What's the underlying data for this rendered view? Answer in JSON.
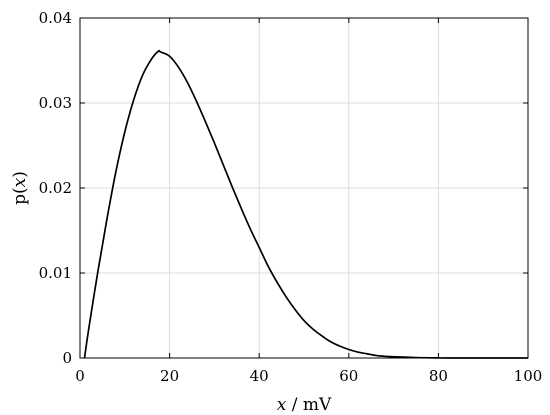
{
  "chart_data": {
    "type": "line",
    "xlabel": {
      "var": "x",
      "unit": " / mV"
    },
    "ylabel": {
      "prefix": "p(",
      "var": "x",
      "suffix": ")"
    },
    "xlim": [
      0,
      100
    ],
    "ylim": [
      0,
      0.04
    ],
    "xticks": [
      0,
      20,
      40,
      60,
      80,
      100
    ],
    "xtick_labels": [
      "0",
      "20",
      "40",
      "60",
      "80",
      "100"
    ],
    "yticks": [
      0,
      0.01,
      0.02,
      0.03,
      0.04
    ],
    "ytick_labels": [
      "0",
      "0.01",
      "0.02",
      "0.03",
      "0.04"
    ],
    "grid": true,
    "series": [
      {
        "color": "#000000",
        "x": [
          1,
          2,
          4,
          6,
          8,
          10,
          12,
          14,
          16,
          17.5,
          18,
          20,
          22,
          24,
          26,
          28,
          30,
          32,
          34,
          36,
          38,
          40,
          42,
          44,
          46,
          48,
          50,
          52,
          54,
          56,
          58,
          60,
          62,
          64,
          66,
          68,
          70,
          75,
          80,
          85,
          90,
          95,
          100
        ],
        "y": [
          0,
          0.0036,
          0.0102,
          0.0163,
          0.0219,
          0.0266,
          0.0304,
          0.0333,
          0.0352,
          0.0361,
          0.036,
          0.0355,
          0.0342,
          0.0324,
          0.0302,
          0.0278,
          0.0253,
          0.0227,
          0.0201,
          0.0176,
          0.0152,
          0.013,
          0.0108,
          0.0089,
          0.0072,
          0.0057,
          0.0044,
          0.0034,
          0.0026,
          0.0019,
          0.0014,
          0.001,
          0.0007,
          0.0005,
          0.0003,
          0.0002,
          0.00015,
          5e-05,
          1e-05,
          0,
          0,
          0,
          0
        ]
      }
    ]
  }
}
